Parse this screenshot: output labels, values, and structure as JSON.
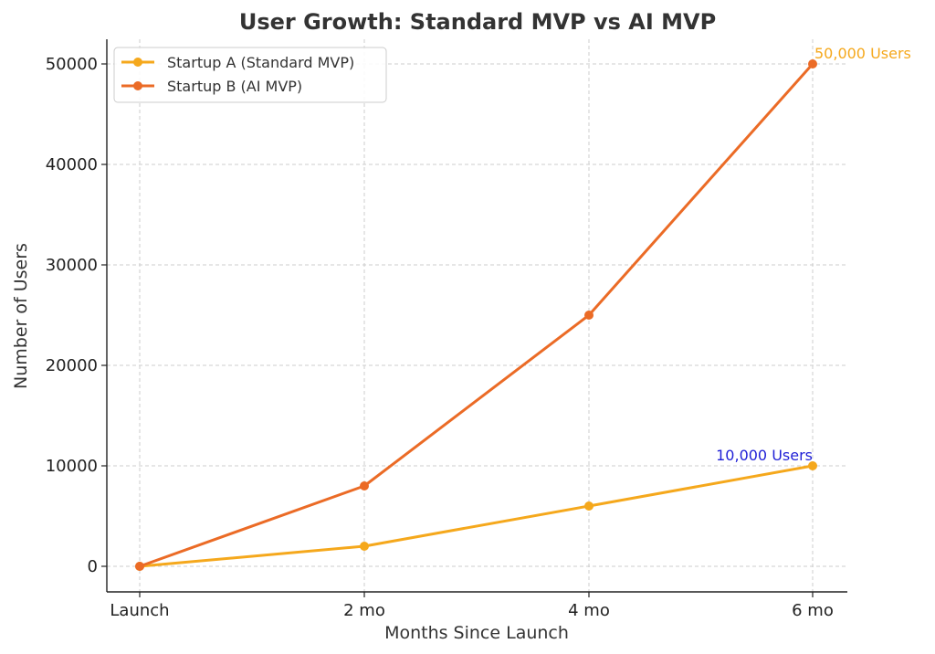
{
  "chart_data": {
    "type": "line",
    "title": "User Growth: Standard MVP vs AI MVP",
    "xlabel": "Months Since Launch",
    "ylabel": "Number of Users",
    "categories": [
      "Launch",
      "2 mo",
      "4 mo",
      "6 mo"
    ],
    "ylim": [
      -2500,
      52500
    ],
    "yticks": [
      0,
      10000,
      20000,
      30000,
      40000,
      50000
    ],
    "grid": true,
    "legend_position": "top-left",
    "series": [
      {
        "name": "Startup A (Standard MVP)",
        "color": "#F5A81C",
        "values": [
          0,
          2000,
          6000,
          10000
        ]
      },
      {
        "name": "Startup B (AI MVP)",
        "color": "#EB6B26",
        "values": [
          0,
          8000,
          25000,
          50000
        ]
      }
    ],
    "annotations": [
      {
        "text": "50,000 Users",
        "category": "6 mo",
        "y": 50000,
        "color": "#F5A81C",
        "align": "start"
      },
      {
        "text": "10,000 Users",
        "category": "6 mo",
        "y": 10000,
        "color": "#1F1FD6",
        "align": "end"
      }
    ]
  }
}
